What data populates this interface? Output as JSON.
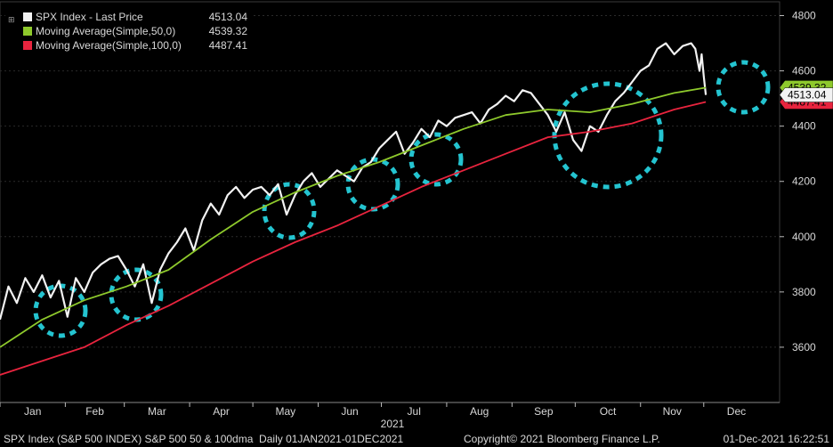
{
  "legend": {
    "corner_glyph": "⊞",
    "items": [
      {
        "label": "SPX Index - Last Price",
        "value": "4513.04",
        "color": "#f2f2f2"
      },
      {
        "label": "Moving Average(Simple,50,0)",
        "value": "4539.32",
        "color": "#8ec92c"
      },
      {
        "label": "Moving Average(Simple,100,0)",
        "value": "4487.41",
        "color": "#e8243e"
      }
    ]
  },
  "footer": {
    "left": "SPX Index (S&P 500 INDEX) S&P 500 50 & 100dma  Daily 01JAN2021-01DEC2021",
    "center": "Copyright© 2021 Bloomberg Finance L.P.",
    "right": "01-Dec-2021 16:22:51"
  },
  "chart_data": {
    "type": "line",
    "ylim": [
      3400,
      4850
    ],
    "y_ticks": [
      3600,
      3800,
      4000,
      4200,
      4400,
      4600,
      4800
    ],
    "x_tick_labels": [
      "Jan",
      "Feb",
      "Mar",
      "Apr",
      "May",
      "Jun",
      "Jul",
      "Aug",
      "Sep",
      "Oct",
      "Nov",
      "Dec"
    ],
    "year_label": "2021",
    "last_price_tag": "4513.04",
    "ma50_tag": "4539.32",
    "ma100_tag": "4487.41",
    "series": [
      {
        "name": "SPX Index - Last Price",
        "color": "#f2f2f2",
        "points": [
          [
            0,
            3700
          ],
          [
            4,
            3820
          ],
          [
            8,
            3760
          ],
          [
            12,
            3850
          ],
          [
            16,
            3800
          ],
          [
            20,
            3860
          ],
          [
            24,
            3780
          ],
          [
            28,
            3840
          ],
          [
            32,
            3710
          ],
          [
            36,
            3850
          ],
          [
            40,
            3800
          ],
          [
            44,
            3870
          ],
          [
            48,
            3900
          ],
          [
            52,
            3920
          ],
          [
            56,
            3930
          ],
          [
            60,
            3880
          ],
          [
            64,
            3820
          ],
          [
            68,
            3900
          ],
          [
            72,
            3760
          ],
          [
            76,
            3880
          ],
          [
            80,
            3940
          ],
          [
            84,
            3980
          ],
          [
            88,
            4030
          ],
          [
            92,
            3950
          ],
          [
            96,
            4060
          ],
          [
            100,
            4120
          ],
          [
            104,
            4080
          ],
          [
            108,
            4150
          ],
          [
            112,
            4180
          ],
          [
            116,
            4140
          ],
          [
            120,
            4170
          ],
          [
            124,
            4180
          ],
          [
            128,
            4150
          ],
          [
            132,
            4190
          ],
          [
            136,
            4080
          ],
          [
            140,
            4150
          ],
          [
            144,
            4200
          ],
          [
            148,
            4230
          ],
          [
            152,
            4180
          ],
          [
            156,
            4210
          ],
          [
            160,
            4240
          ],
          [
            164,
            4220
          ],
          [
            168,
            4200
          ],
          [
            172,
            4250
          ],
          [
            176,
            4270
          ],
          [
            180,
            4320
          ],
          [
            184,
            4350
          ],
          [
            188,
            4380
          ],
          [
            192,
            4300
          ],
          [
            196,
            4340
          ],
          [
            200,
            4390
          ],
          [
            204,
            4360
          ],
          [
            208,
            4420
          ],
          [
            212,
            4400
          ],
          [
            216,
            4430
          ],
          [
            220,
            4440
          ],
          [
            224,
            4450
          ],
          [
            228,
            4410
          ],
          [
            232,
            4460
          ],
          [
            236,
            4480
          ],
          [
            240,
            4510
          ],
          [
            244,
            4490
          ],
          [
            248,
            4530
          ],
          [
            252,
            4520
          ],
          [
            256,
            4480
          ],
          [
            260,
            4440
          ],
          [
            264,
            4380
          ],
          [
            268,
            4450
          ],
          [
            272,
            4350
          ],
          [
            276,
            4310
          ],
          [
            280,
            4400
          ],
          [
            284,
            4380
          ],
          [
            288,
            4440
          ],
          [
            292,
            4490
          ],
          [
            296,
            4520
          ],
          [
            300,
            4560
          ],
          [
            304,
            4600
          ],
          [
            308,
            4620
          ],
          [
            312,
            4680
          ],
          [
            316,
            4700
          ],
          [
            320,
            4660
          ],
          [
            324,
            4690
          ],
          [
            328,
            4700
          ],
          [
            330,
            4680
          ],
          [
            332,
            4600
          ],
          [
            333,
            4660
          ],
          [
            334,
            4580
          ],
          [
            335,
            4513
          ]
        ]
      },
      {
        "name": "Moving Average(Simple,50,0)",
        "color": "#8ec92c",
        "points": [
          [
            0,
            3600
          ],
          [
            20,
            3700
          ],
          [
            40,
            3770
          ],
          [
            60,
            3820
          ],
          [
            80,
            3880
          ],
          [
            100,
            3990
          ],
          [
            120,
            4090
          ],
          [
            140,
            4160
          ],
          [
            160,
            4220
          ],
          [
            180,
            4270
          ],
          [
            200,
            4330
          ],
          [
            220,
            4390
          ],
          [
            240,
            4440
          ],
          [
            260,
            4460
          ],
          [
            280,
            4450
          ],
          [
            300,
            4480
          ],
          [
            320,
            4520
          ],
          [
            335,
            4539.32
          ]
        ]
      },
      {
        "name": "Moving Average(Simple,100,0)",
        "color": "#e8243e",
        "points": [
          [
            0,
            3500
          ],
          [
            20,
            3550
          ],
          [
            40,
            3600
          ],
          [
            60,
            3680
          ],
          [
            80,
            3750
          ],
          [
            100,
            3830
          ],
          [
            120,
            3910
          ],
          [
            140,
            3980
          ],
          [
            160,
            4040
          ],
          [
            180,
            4110
          ],
          [
            200,
            4180
          ],
          [
            220,
            4240
          ],
          [
            240,
            4300
          ],
          [
            260,
            4360
          ],
          [
            280,
            4380
          ],
          [
            300,
            4410
          ],
          [
            320,
            4460
          ],
          [
            335,
            4487.41
          ]
        ]
      }
    ]
  }
}
